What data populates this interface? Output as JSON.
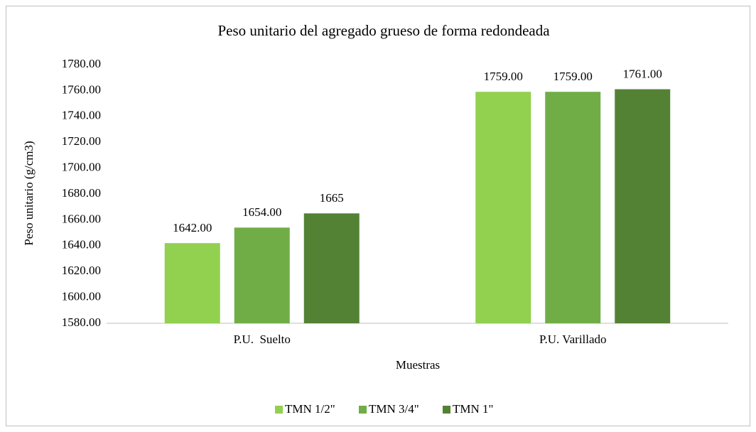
{
  "chart_data": {
    "type": "bar",
    "title": "Peso unitario del agregado grueso de forma redondeada",
    "x_label": "Muestras",
    "y_label": "Peso unitario (g/cm3)",
    "categories": [
      "P.U.  Suelto",
      "P.U. Varillado"
    ],
    "series": [
      {
        "name": "TMN 1/2\"",
        "color": "#92d050",
        "values": [
          1642,
          1759
        ],
        "value_labels": [
          "1642.00",
          "1759.00"
        ]
      },
      {
        "name": "TMN 3/4\"",
        "color": "#70ad47",
        "values": [
          1654,
          1759
        ],
        "value_labels": [
          "1654.00",
          "1759.00"
        ]
      },
      {
        "name": "TMN 1\"",
        "color": "#548235",
        "values": [
          1665,
          1761
        ],
        "value_labels": [
          "1665",
          "1761.00"
        ]
      }
    ],
    "ylim": [
      1580,
      1780
    ],
    "yticks": [
      {
        "value": 1580,
        "label": "1580.00"
      },
      {
        "value": 1600,
        "label": "1600.00"
      },
      {
        "value": 1620,
        "label": "1620.00"
      },
      {
        "value": 1640,
        "label": "1640.00"
      },
      {
        "value": 1660,
        "label": "1660.00"
      },
      {
        "value": 1680,
        "label": "1680.00"
      },
      {
        "value": 1700,
        "label": "1700.00"
      },
      {
        "value": 1720,
        "label": "1720.00"
      },
      {
        "value": 1740,
        "label": "1740.00"
      },
      {
        "value": 1760,
        "label": "1760.00"
      },
      {
        "value": 1780,
        "label": "1780.00"
      }
    ],
    "grid": false,
    "legend": "bottom"
  }
}
